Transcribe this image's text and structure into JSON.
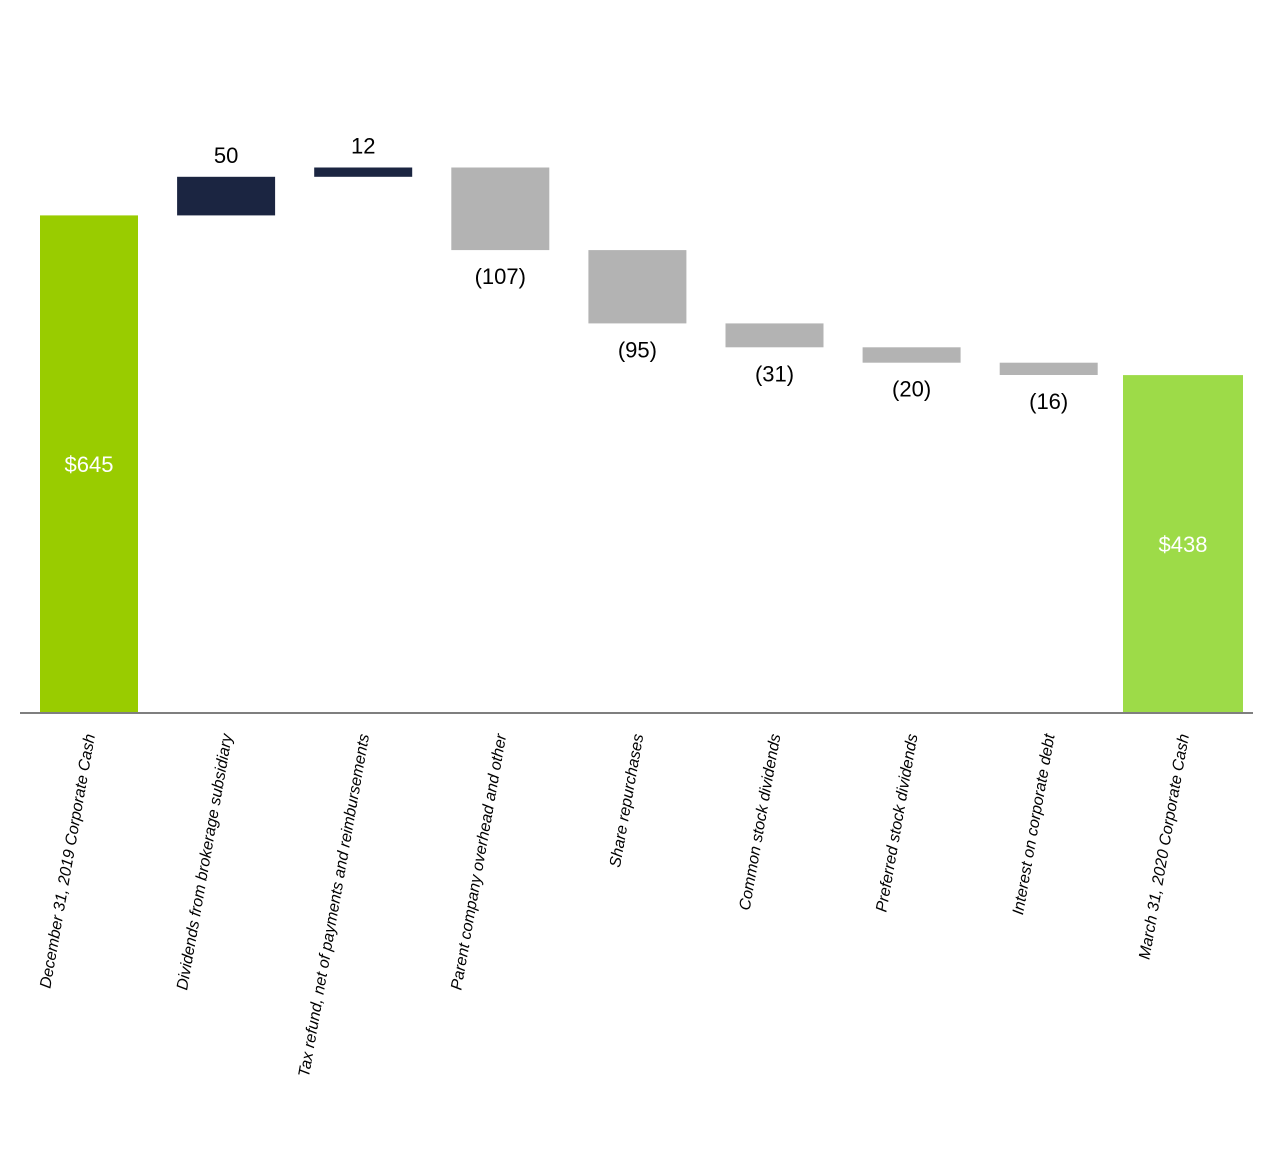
{
  "chart_data": {
    "type": "bar",
    "subtype": "waterfall",
    "title": "",
    "xlabel": "",
    "ylabel": "",
    "grid": false,
    "legend": "none",
    "categories": [
      "December 31, 2019 Corporate Cash",
      "Dividends from brokerage subsidiary",
      "Tax refund, net of payments and reimbursements",
      "Parent company overhead and other",
      "Share repurchases",
      "Common stock dividends",
      "Preferred stock dividends",
      "Interest on corporate debt",
      "March 31, 2020 Corporate Cash"
    ],
    "values": [
      645,
      50,
      12,
      -107,
      -95,
      -31,
      -20,
      -16,
      438
    ],
    "kinds": [
      "total",
      "increase",
      "increase",
      "decrease",
      "decrease",
      "decrease",
      "decrease",
      "decrease",
      "total"
    ],
    "data_labels": [
      "$645",
      "50",
      "12",
      "(107)",
      "(95)",
      "(31)",
      "(20)",
      "(16)",
      "$438"
    ],
    "colors": {
      "start_total": "#99cc00",
      "end_total": "#9ddb48",
      "increase": "#1b2541",
      "decrease": "#b3b3b3",
      "axis": "#7f7f7f"
    },
    "ylim": [
      0,
      760
    ]
  }
}
